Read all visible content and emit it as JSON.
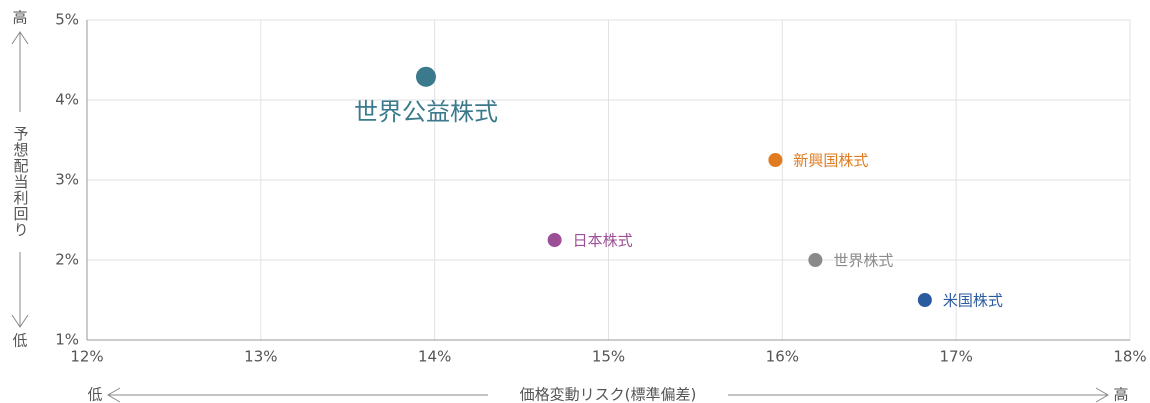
{
  "chart_data": {
    "type": "scatter",
    "xlabel": "価格変動リスク(標準偏差)",
    "ylabel": "予想配当利回り",
    "x_low": "低",
    "x_high": "高",
    "y_low": "低",
    "y_high": "高",
    "xlim": [
      12,
      18
    ],
    "xticks": [
      {
        "value": 12,
        "label": "12%"
      },
      {
        "value": 13,
        "label": "13%"
      },
      {
        "value": 14,
        "label": "14%"
      },
      {
        "value": 15,
        "label": "15%"
      },
      {
        "value": 16,
        "label": "16%"
      },
      {
        "value": 17,
        "label": "17%"
      },
      {
        "value": 18,
        "label": "18%"
      }
    ],
    "ylim": [
      1,
      5
    ],
    "yticks": [
      {
        "value": 1,
        "label": "1%"
      },
      {
        "value": 2,
        "label": "2%"
      },
      {
        "value": 3,
        "label": "3%"
      },
      {
        "value": 4,
        "label": "4%"
      },
      {
        "value": 5,
        "label": "5%"
      }
    ],
    "grid": true,
    "series": [
      {
        "name": "世界公益株式",
        "color": "#3a7a8c",
        "x": [
          13.95
        ],
        "values": [
          4.29
        ],
        "emphasized": true
      },
      {
        "name": "新興国株式",
        "color": "#e07b20",
        "x": [
          15.96
        ],
        "values": [
          3.25
        ]
      },
      {
        "name": "日本株式",
        "color": "#9b4f96",
        "x": [
          14.69
        ],
        "values": [
          2.25
        ]
      },
      {
        "name": "世界株式",
        "color": "#8a8a8a",
        "x": [
          16.19
        ],
        "values": [
          2.0
        ]
      },
      {
        "name": "米国株式",
        "color": "#2a5aa0",
        "x": [
          16.82
        ],
        "values": [
          1.5
        ]
      }
    ]
  }
}
